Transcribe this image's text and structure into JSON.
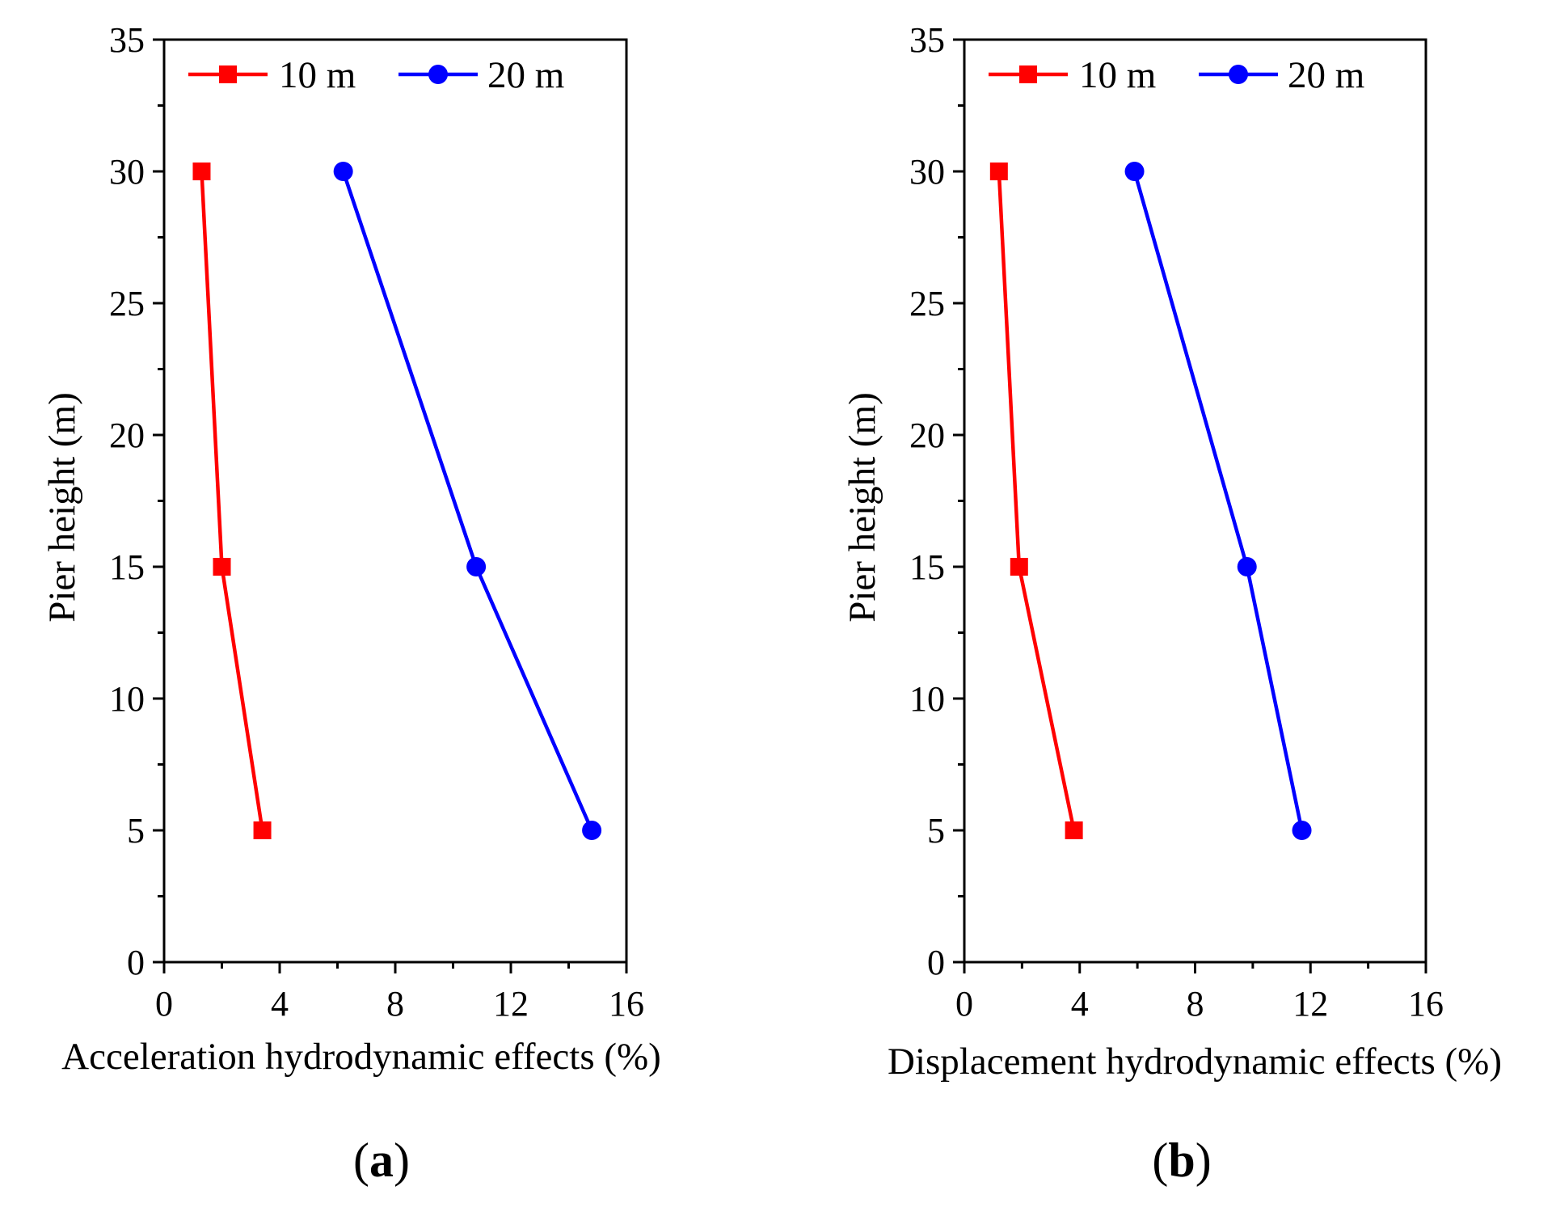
{
  "chart_data": [
    {
      "type": "line",
      "panel_label": "a",
      "xlabel": "Acceleration hydrodynamic effects (%)",
      "ylabel": "Pier height (m)",
      "xlim": [
        0,
        16
      ],
      "ylim": [
        0,
        35
      ],
      "xticks": [
        0,
        4,
        8,
        12,
        16
      ],
      "yticks": [
        0,
        5,
        10,
        15,
        20,
        25,
        30,
        35
      ],
      "legend_position": "top",
      "series": [
        {
          "name": "10 m",
          "color": "#ff0000",
          "marker": "square",
          "x": [
            1.3,
            2.0,
            3.4
          ],
          "y": [
            30,
            15,
            5
          ]
        },
        {
          "name": "20 m",
          "color": "#0000ff",
          "marker": "circle",
          "x": [
            6.2,
            10.8,
            14.8
          ],
          "y": [
            30,
            15,
            5
          ]
        }
      ]
    },
    {
      "type": "line",
      "panel_label": "b",
      "xlabel": "Displacement hydrodynamic effects (%)",
      "ylabel": "Pier height (m)",
      "xlim": [
        0,
        16
      ],
      "ylim": [
        0,
        35
      ],
      "xticks": [
        0,
        4,
        8,
        12,
        16
      ],
      "yticks": [
        0,
        5,
        10,
        15,
        20,
        25,
        30,
        35
      ],
      "legend_position": "top",
      "series": [
        {
          "name": "10 m",
          "color": "#ff0000",
          "marker": "square",
          "x": [
            1.2,
            1.9,
            3.8
          ],
          "y": [
            30,
            15,
            5
          ]
        },
        {
          "name": "20 m",
          "color": "#0000ff",
          "marker": "circle",
          "x": [
            5.9,
            9.8,
            11.7
          ],
          "y": [
            30,
            15,
            5
          ]
        }
      ]
    }
  ]
}
